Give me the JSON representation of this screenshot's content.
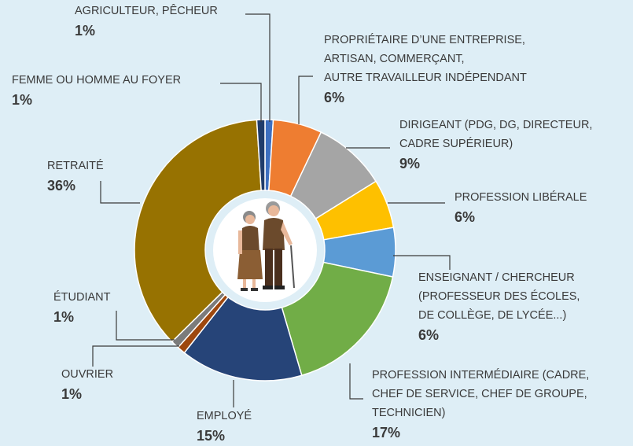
{
  "chart_data": {
    "type": "donut",
    "categories": [
      [
        "AGRICULTEUR, PÊCHEUR"
      ],
      [
        "PROPRIÉTAIRE D’UNE ENTREPRISE,",
        "ARTISAN, COMMERÇANT,",
        "AUTRE TRAVAILLEUR INDÉPENDANT"
      ],
      [
        "DIRIGEANT (PDG, DG, DIRECTEUR,",
        "CADRE SUPÉRIEUR)"
      ],
      [
        "PROFESSION LIBÉRALE"
      ],
      [
        "ENSEIGNANT / CHERCHEUR",
        "(PROFESSEUR DES ÉCOLES,",
        "DE COLLÈGE, DE LYCÉE...)"
      ],
      [
        "PROFESSION INTERMÉDIAIRE (CADRE,",
        "CHEF DE SERVICE, CHEF DE GROUPE,",
        "TECHNICIEN)"
      ],
      [
        "EMPLOYÉ"
      ],
      [
        "OUVRIER"
      ],
      [
        "ÉTUDIANT"
      ],
      [
        "RETRAITÉ"
      ],
      [
        "FEMME OU HOMME AU FOYER"
      ]
    ],
    "values": [
      1,
      6,
      9,
      6,
      6,
      17,
      15,
      1,
      1,
      36,
      1
    ],
    "value_labels": [
      "1%",
      "6%",
      "9%",
      "6%",
      "6%",
      "17%",
      "15%",
      "1%",
      "1%",
      "36%",
      "1%"
    ],
    "colors": [
      "#3d6fc0",
      "#ee7d31",
      "#a5a5a5",
      "#fec000",
      "#5b9bd5",
      "#71ad47",
      "#264478",
      "#9e480e",
      "#7b7b7b",
      "#977201",
      "#203c6b"
    ]
  }
}
